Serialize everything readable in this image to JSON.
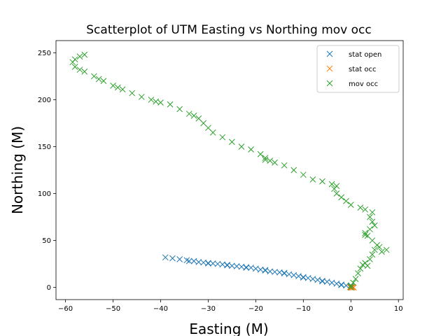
{
  "chart_data": {
    "type": "scatter",
    "title": "Scatterplot of UTM Easting vs Northing mov occ",
    "xlabel": "Easting (M)",
    "ylabel": "Northing (M)",
    "xlim": [
      -62,
      11
    ],
    "ylim": [
      -13,
      263
    ],
    "xticks": [
      -60,
      -50,
      -40,
      -30,
      -20,
      -10,
      0,
      10
    ],
    "yticks": [
      0,
      50,
      100,
      150,
      200,
      250
    ],
    "grid": false,
    "marker": "x",
    "legend_position": "top-right",
    "series": [
      {
        "name": "stat open",
        "color": "#1f77b4",
        "points": [
          [
            -39,
            32
          ],
          [
            -37.5,
            31
          ],
          [
            -36,
            30
          ],
          [
            -34.5,
            29
          ],
          [
            -33,
            28
          ],
          [
            -32,
            27
          ],
          [
            -31,
            26.5
          ],
          [
            -30,
            26
          ],
          [
            -29,
            25.5
          ],
          [
            -28,
            25
          ],
          [
            -27,
            24.5
          ],
          [
            -26,
            24
          ],
          [
            -25,
            23
          ],
          [
            -24,
            22.5
          ],
          [
            -23,
            22
          ],
          [
            -22,
            21.5
          ],
          [
            -21,
            21
          ],
          [
            -20,
            20
          ],
          [
            -19,
            19
          ],
          [
            -18,
            18
          ],
          [
            -17,
            17
          ],
          [
            -16,
            16.5
          ],
          [
            -15,
            16
          ],
          [
            -14,
            15
          ],
          [
            -13,
            14
          ],
          [
            -12,
            13
          ],
          [
            -11,
            12
          ],
          [
            -10,
            11
          ],
          [
            -9,
            10
          ],
          [
            -8,
            9
          ],
          [
            -7,
            8
          ],
          [
            -6,
            7
          ],
          [
            -5,
            6
          ],
          [
            -4,
            5
          ],
          [
            -3,
            4
          ],
          [
            -2,
            3
          ],
          [
            -1,
            2
          ],
          [
            0,
            1
          ],
          [
            -34,
            28
          ],
          [
            -30,
            25.5
          ],
          [
            -26,
            23.5
          ],
          [
            -22,
            21
          ],
          [
            -18,
            18.5
          ],
          [
            -14,
            15.5
          ],
          [
            -10,
            10.5
          ],
          [
            -6,
            6.5
          ],
          [
            -2,
            2.5
          ]
        ]
      },
      {
        "name": "stat occ",
        "color": "#ff7f0e",
        "points": [
          [
            0,
            0
          ],
          [
            0.2,
            -0.3
          ],
          [
            0.4,
            0.3
          ],
          [
            -0.2,
            0.2
          ],
          [
            0.6,
            -0.1
          ],
          [
            0.3,
            0.5
          ]
        ]
      },
      {
        "name": "mov occ",
        "color": "#2ca02c",
        "points": [
          [
            0,
            0
          ],
          [
            0,
            2
          ],
          [
            0.5,
            5
          ],
          [
            1,
            9
          ],
          [
            1.5,
            15
          ],
          [
            2,
            20
          ],
          [
            2.5,
            24
          ],
          [
            3,
            26
          ],
          [
            3.5,
            23
          ],
          [
            4,
            30
          ],
          [
            4.5,
            35
          ],
          [
            5,
            40
          ],
          [
            6,
            43
          ],
          [
            7.5,
            40
          ],
          [
            6.5,
            38
          ],
          [
            5.5,
            45
          ],
          [
            4.5,
            50
          ],
          [
            3.5,
            55
          ],
          [
            3,
            58
          ],
          [
            4,
            62
          ],
          [
            5,
            66
          ],
          [
            4.5,
            70
          ],
          [
            4,
            75
          ],
          [
            4.5,
            80
          ],
          [
            3,
            83
          ],
          [
            2,
            85
          ],
          [
            0,
            88
          ],
          [
            -1,
            92
          ],
          [
            -2,
            96
          ],
          [
            -3,
            100
          ],
          [
            -3.5,
            105
          ],
          [
            -4,
            110
          ],
          [
            -6,
            113
          ],
          [
            -8,
            115
          ],
          [
            -10,
            120
          ],
          [
            -12,
            125
          ],
          [
            -14,
            130
          ],
          [
            -16,
            133
          ],
          [
            -17,
            135
          ],
          [
            -18,
            138
          ],
          [
            -19,
            142
          ],
          [
            -21,
            147
          ],
          [
            -23,
            150
          ],
          [
            -25,
            155
          ],
          [
            -27,
            160
          ],
          [
            -29,
            165
          ],
          [
            -30,
            170
          ],
          [
            -31,
            175
          ],
          [
            -32,
            180
          ],
          [
            -34,
            185
          ],
          [
            -36,
            190
          ],
          [
            -38,
            195
          ],
          [
            -40,
            197
          ],
          [
            -42,
            200
          ],
          [
            -44,
            203
          ],
          [
            -46,
            207
          ],
          [
            -48,
            211
          ],
          [
            -50,
            215
          ],
          [
            -52,
            220
          ],
          [
            -54,
            225
          ],
          [
            -56,
            230
          ],
          [
            -58,
            235
          ],
          [
            -58.5,
            240
          ],
          [
            -58,
            243
          ],
          [
            -57,
            246
          ],
          [
            -56,
            248
          ],
          [
            -33,
            183
          ],
          [
            -41,
            198
          ],
          [
            -49,
            213
          ],
          [
            -53,
            222
          ],
          [
            -57,
            232
          ],
          [
            -18,
            136
          ],
          [
            -3,
            108
          ],
          [
            3,
            56
          ]
        ]
      }
    ]
  }
}
